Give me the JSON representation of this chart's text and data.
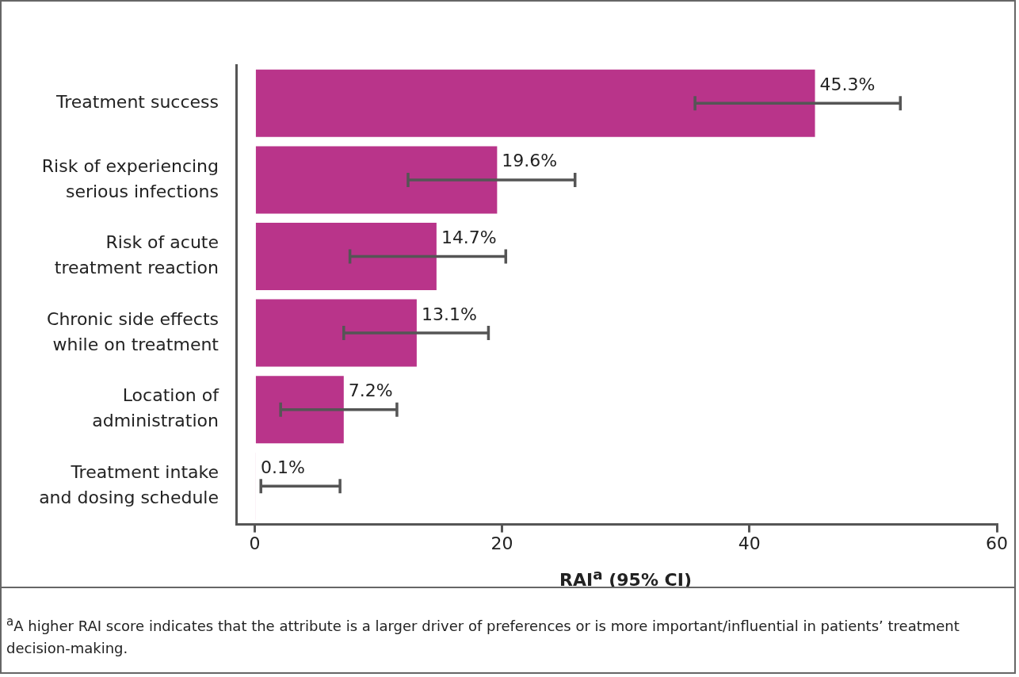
{
  "chart_data": {
    "type": "bar",
    "orientation": "horizontal",
    "xlabel": "RAI$^{a}$ (95% CI)",
    "categories": [
      "Treatment success",
      "Risk of experiencing\nserious infections",
      "Risk of acute\ntreatment reaction",
      "Chronic side effects\nwhile on treatment",
      "Location of\nadministration",
      "Treatment intake\nand dosing schedule"
    ],
    "values": [
      45.3,
      19.6,
      14.7,
      13.1,
      7.2,
      0.1
    ],
    "value_labels": [
      "45.3%",
      "19.6%",
      "14.7%",
      "13.1%",
      "7.2%",
      "0.1%"
    ],
    "errors": [
      [
        35.6,
        52.2
      ],
      [
        12.4,
        25.9
      ],
      [
        7.7,
        20.3
      ],
      [
        7.2,
        18.9
      ],
      [
        2.1,
        11.5
      ],
      [
        0.5,
        6.9
      ]
    ],
    "color": "#b9348a",
    "xlim": [
      -1.5,
      60
    ],
    "xticks": [
      0,
      20,
      40,
      60
    ],
    "grid": false,
    "legend": false,
    "annotations": [
      "$^{a}$A higher RAI score indicates that the attribute is a larger driver of preferences or is more important/influential in patients’ treatment decision-making."
    ]
  }
}
